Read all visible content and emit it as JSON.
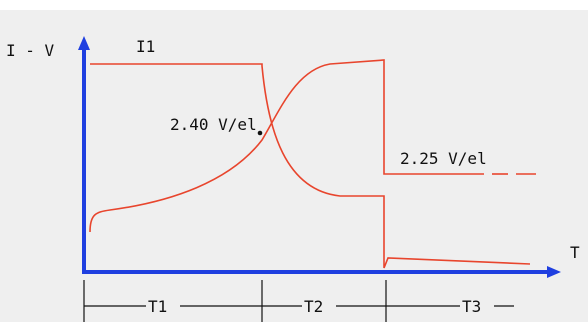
{
  "diagram": {
    "y_axis_label": "I - V",
    "x_axis_label": "T",
    "current_label": "I1",
    "voltage_label_1": "2.40 V/el",
    "voltage_label_2": "2.25 V/el",
    "phases": [
      "T1",
      "T2",
      "T3"
    ]
  },
  "colors": {
    "background": "#efefef",
    "axis": "#1f3fe0",
    "curve": "#e8452d",
    "text": "#111111"
  }
}
